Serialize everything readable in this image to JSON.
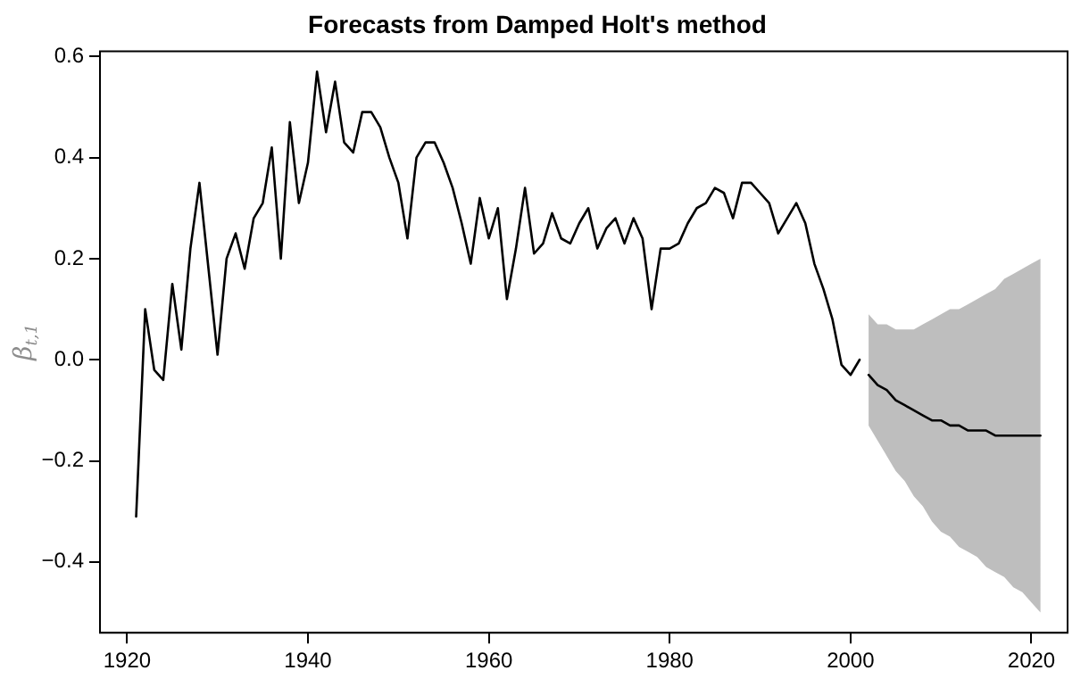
{
  "chart_data": {
    "type": "line",
    "title": "Forecasts from Damped Holt's method",
    "ylabel": "β$_{t,1}$",
    "xlim": [
      1917,
      2024
    ],
    "xticks": [
      1920,
      1940,
      1960,
      1980,
      2000,
      2020
    ],
    "ylim": [
      -0.54,
      0.61
    ],
    "yticks": [
      {
        "value": -0.4,
        "label": "−0.4"
      },
      {
        "value": -0.2,
        "label": "−0.2"
      },
      {
        "value": 0,
        "label": "0.0"
      },
      {
        "value": 0.2,
        "label": "0.2"
      },
      {
        "value": 0.4,
        "label": "0.4"
      },
      {
        "value": 0.6,
        "label": "0.6"
      }
    ],
    "grid": false,
    "legend": false,
    "marker": "none",
    "line_style": "solid",
    "series": [
      {
        "color": "#000000",
        "x": [
          1921,
          1922,
          1923,
          1924,
          1925,
          1926,
          1927,
          1928,
          1929,
          1930,
          1931,
          1932,
          1933,
          1934,
          1935,
          1936,
          1937,
          1938,
          1939,
          1940,
          1941,
          1942,
          1943,
          1944,
          1945,
          1946,
          1947,
          1948,
          1949,
          1950,
          1951,
          1952,
          1953,
          1954,
          1955,
          1956,
          1957,
          1958,
          1959,
          1960,
          1961,
          1962,
          1963,
          1964,
          1965,
          1966,
          1967,
          1968,
          1969,
          1970,
          1971,
          1972,
          1973,
          1974,
          1975,
          1976,
          1977,
          1978,
          1979,
          1980,
          1981,
          1982,
          1983,
          1984,
          1985,
          1986,
          1987,
          1988,
          1989,
          1990,
          1991,
          1992,
          1993,
          1994,
          1995,
          1996,
          1997,
          1998,
          1999,
          2000,
          2001
        ],
        "values": [
          -0.31,
          0.1,
          -0.02,
          -0.04,
          0.15,
          0.02,
          0.22,
          0.35,
          0.18,
          0.01,
          0.2,
          0.25,
          0.18,
          0.28,
          0.31,
          0.42,
          0.2,
          0.47,
          0.31,
          0.39,
          0.57,
          0.45,
          0.55,
          0.43,
          0.41,
          0.49,
          0.49,
          0.46,
          0.4,
          0.35,
          0.24,
          0.4,
          0.43,
          0.43,
          0.39,
          0.34,
          0.27,
          0.19,
          0.32,
          0.24,
          0.3,
          0.12,
          0.22,
          0.34,
          0.21,
          0.23,
          0.29,
          0.24,
          0.23,
          0.27,
          0.3,
          0.22,
          0.26,
          0.28,
          0.23,
          0.28,
          0.24,
          0.1,
          0.22,
          0.22,
          0.23,
          0.27,
          0.3,
          0.31,
          0.34,
          0.33,
          0.28,
          0.35,
          0.35,
          0.33,
          0.31,
          0.25,
          0.28,
          0.31,
          0.27,
          0.19,
          0.14,
          0.08,
          -0.01,
          -0.03,
          0.0
        ]
      },
      {
        "color": "#000000",
        "x": [
          2002,
          2003,
          2004,
          2005,
          2006,
          2007,
          2008,
          2009,
          2010,
          2011,
          2012,
          2013,
          2014,
          2015,
          2016,
          2017,
          2018,
          2019,
          2020,
          2021
        ],
        "values": [
          -0.03,
          -0.05,
          -0.06,
          -0.08,
          -0.09,
          -0.1,
          -0.11,
          -0.12,
          -0.12,
          -0.13,
          -0.13,
          -0.14,
          -0.14,
          -0.14,
          -0.15,
          -0.15,
          -0.15,
          -0.15,
          -0.15,
          -0.15
        ],
        "lower": [
          -0.13,
          -0.16,
          -0.19,
          -0.22,
          -0.24,
          -0.27,
          -0.29,
          -0.32,
          -0.34,
          -0.35,
          -0.37,
          -0.38,
          -0.39,
          -0.41,
          -0.42,
          -0.43,
          -0.45,
          -0.46,
          -0.48,
          -0.5
        ],
        "upper": [
          0.09,
          0.07,
          0.07,
          0.06,
          0.06,
          0.06,
          0.07,
          0.08,
          0.09,
          0.1,
          0.1,
          0.11,
          0.12,
          0.13,
          0.14,
          0.16,
          0.17,
          0.18,
          0.19,
          0.2
        ]
      }
    ]
  }
}
